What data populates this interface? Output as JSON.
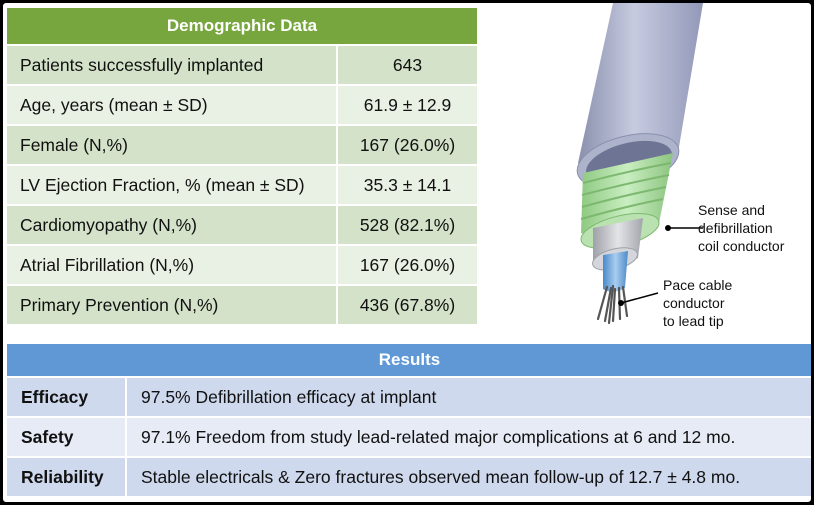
{
  "demographic": {
    "title": "Demographic Data",
    "rows": [
      {
        "label": "Patients successfully implanted",
        "value": "643"
      },
      {
        "label": "Age, years (mean ± SD)",
        "value": "61.9 ± 12.9"
      },
      {
        "label": "Female (N,%)",
        "value": "167 (26.0%)"
      },
      {
        "label": "LV Ejection Fraction, % (mean ± SD)",
        "value": "35.3 ± 14.1"
      },
      {
        "label": "Cardiomyopathy (N,%)",
        "value": "528 (82.1%)"
      },
      {
        "label": "Atrial Fibrillation (N,%)",
        "value": "167 (26.0%)"
      },
      {
        "label": "Primary Prevention (N,%)",
        "value": "436 (67.8%)"
      }
    ]
  },
  "illustration": {
    "callout_coil": [
      "Sense and",
      "defibrillation",
      "coil conductor"
    ],
    "callout_cable": [
      "Pace cable",
      "conductor",
      "to lead tip"
    ]
  },
  "results": {
    "title": "Results",
    "rows": [
      {
        "key": "Efficacy",
        "value": "97.5% Defibrillation efficacy at implant"
      },
      {
        "key": "Safety",
        "value": "97.1% Freedom from study lead-related major complications at 6 and 12 mo."
      },
      {
        "key": "Reliability",
        "value": "Stable electricals & Zero fractures observed mean follow-up of 12.7 ± 4.8 mo."
      }
    ]
  },
  "colors": {
    "demo_header": "#78a63e",
    "demo_row": "#d4e2c9",
    "results_header": "#5f98d4",
    "results_row": "#cfd9ee"
  }
}
